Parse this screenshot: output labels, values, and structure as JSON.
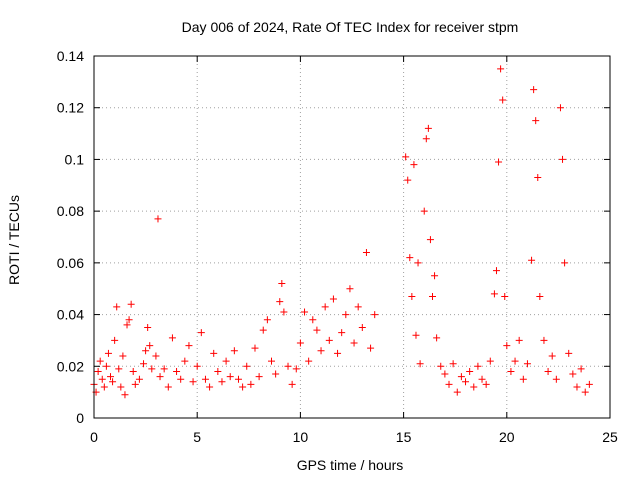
{
  "chart_data": {
    "type": "scatter",
    "title": "Day 006 of 2024, Rate Of TEC Index for receiver stpm",
    "xlabel": "GPS time / hours",
    "ylabel": "ROTI / TECUs",
    "xlim": [
      0,
      25
    ],
    "ylim": [
      0,
      0.14
    ],
    "xticks": [
      0,
      5,
      10,
      15,
      20,
      25
    ],
    "yticks": [
      0,
      0.02,
      0.04,
      0.06,
      0.08,
      0.1,
      0.12,
      0.14
    ],
    "xtick_labels": [
      "0",
      "5",
      "10",
      "15",
      "20",
      "25"
    ],
    "ytick_labels": [
      "0",
      "0.02",
      "0.04",
      "0.06",
      "0.08",
      "0.1",
      "0.12",
      "0.14"
    ],
    "grid": true,
    "marker": "+",
    "color": "#ff0000",
    "series": [
      {
        "name": "ROTI",
        "points": [
          [
            0.0,
            0.013
          ],
          [
            0.1,
            0.01
          ],
          [
            0.2,
            0.018
          ],
          [
            0.3,
            0.022
          ],
          [
            0.4,
            0.015
          ],
          [
            0.5,
            0.012
          ],
          [
            0.6,
            0.02
          ],
          [
            0.7,
            0.025
          ],
          [
            0.8,
            0.016
          ],
          [
            0.9,
            0.014
          ],
          [
            1.0,
            0.03
          ],
          [
            1.1,
            0.043
          ],
          [
            1.2,
            0.019
          ],
          [
            1.3,
            0.012
          ],
          [
            1.4,
            0.024
          ],
          [
            1.5,
            0.009
          ],
          [
            1.6,
            0.036
          ],
          [
            1.7,
            0.038
          ],
          [
            1.8,
            0.044
          ],
          [
            1.9,
            0.018
          ],
          [
            2.0,
            0.013
          ],
          [
            2.2,
            0.015
          ],
          [
            2.4,
            0.021
          ],
          [
            2.5,
            0.026
          ],
          [
            2.6,
            0.035
          ],
          [
            2.7,
            0.028
          ],
          [
            2.8,
            0.019
          ],
          [
            3.0,
            0.024
          ],
          [
            3.1,
            0.077
          ],
          [
            3.2,
            0.016
          ],
          [
            3.4,
            0.019
          ],
          [
            3.6,
            0.012
          ],
          [
            3.8,
            0.031
          ],
          [
            4.0,
            0.018
          ],
          [
            4.2,
            0.015
          ],
          [
            4.4,
            0.022
          ],
          [
            4.6,
            0.028
          ],
          [
            4.8,
            0.014
          ],
          [
            5.0,
            0.02
          ],
          [
            5.2,
            0.033
          ],
          [
            5.4,
            0.015
          ],
          [
            5.6,
            0.012
          ],
          [
            5.8,
            0.025
          ],
          [
            6.0,
            0.018
          ],
          [
            6.2,
            0.014
          ],
          [
            6.4,
            0.022
          ],
          [
            6.6,
            0.016
          ],
          [
            6.8,
            0.026
          ],
          [
            7.0,
            0.015
          ],
          [
            7.2,
            0.012
          ],
          [
            7.4,
            0.02
          ],
          [
            7.6,
            0.013
          ],
          [
            7.8,
            0.027
          ],
          [
            8.0,
            0.016
          ],
          [
            8.2,
            0.034
          ],
          [
            8.4,
            0.038
          ],
          [
            8.6,
            0.022
          ],
          [
            8.8,
            0.017
          ],
          [
            9.0,
            0.045
          ],
          [
            9.1,
            0.052
          ],
          [
            9.2,
            0.041
          ],
          [
            9.4,
            0.02
          ],
          [
            9.6,
            0.013
          ],
          [
            9.8,
            0.019
          ],
          [
            10.0,
            0.029
          ],
          [
            10.2,
            0.041
          ],
          [
            10.4,
            0.022
          ],
          [
            10.6,
            0.038
          ],
          [
            10.8,
            0.034
          ],
          [
            11.0,
            0.026
          ],
          [
            11.2,
            0.043
          ],
          [
            11.4,
            0.03
          ],
          [
            11.6,
            0.046
          ],
          [
            11.8,
            0.025
          ],
          [
            12.0,
            0.033
          ],
          [
            12.2,
            0.04
          ],
          [
            12.4,
            0.05
          ],
          [
            12.6,
            0.029
          ],
          [
            12.8,
            0.043
          ],
          [
            13.0,
            0.035
          ],
          [
            13.2,
            0.064
          ],
          [
            13.4,
            0.027
          ],
          [
            13.6,
            0.04
          ],
          [
            15.1,
            0.101
          ],
          [
            15.2,
            0.092
          ],
          [
            15.3,
            0.062
          ],
          [
            15.4,
            0.047
          ],
          [
            15.5,
            0.098
          ],
          [
            15.6,
            0.032
          ],
          [
            15.7,
            0.06
          ],
          [
            15.8,
            0.021
          ],
          [
            16.0,
            0.08
          ],
          [
            16.1,
            0.108
          ],
          [
            16.2,
            0.112
          ],
          [
            16.3,
            0.069
          ],
          [
            16.4,
            0.047
          ],
          [
            16.5,
            0.055
          ],
          [
            16.6,
            0.031
          ],
          [
            16.8,
            0.02
          ],
          [
            17.0,
            0.017
          ],
          [
            17.2,
            0.013
          ],
          [
            17.4,
            0.021
          ],
          [
            17.6,
            0.01
          ],
          [
            17.8,
            0.016
          ],
          [
            18.0,
            0.014
          ],
          [
            18.2,
            0.018
          ],
          [
            18.4,
            0.012
          ],
          [
            18.6,
            0.02
          ],
          [
            18.8,
            0.015
          ],
          [
            19.0,
            0.013
          ],
          [
            19.2,
            0.022
          ],
          [
            19.4,
            0.048
          ],
          [
            19.5,
            0.057
          ],
          [
            19.6,
            0.099
          ],
          [
            19.7,
            0.135
          ],
          [
            19.8,
            0.123
          ],
          [
            19.9,
            0.047
          ],
          [
            20.0,
            0.028
          ],
          [
            20.2,
            0.018
          ],
          [
            20.4,
            0.022
          ],
          [
            20.6,
            0.03
          ],
          [
            20.8,
            0.015
          ],
          [
            21.0,
            0.021
          ],
          [
            21.2,
            0.061
          ],
          [
            21.3,
            0.127
          ],
          [
            21.4,
            0.115
          ],
          [
            21.5,
            0.093
          ],
          [
            21.6,
            0.047
          ],
          [
            21.8,
            0.03
          ],
          [
            22.0,
            0.018
          ],
          [
            22.2,
            0.024
          ],
          [
            22.4,
            0.015
          ],
          [
            22.6,
            0.12
          ],
          [
            22.7,
            0.1
          ],
          [
            22.8,
            0.06
          ],
          [
            23.0,
            0.025
          ],
          [
            23.2,
            0.017
          ],
          [
            23.4,
            0.012
          ],
          [
            23.6,
            0.019
          ],
          [
            23.8,
            0.01
          ],
          [
            24.0,
            0.013
          ]
        ]
      }
    ]
  }
}
